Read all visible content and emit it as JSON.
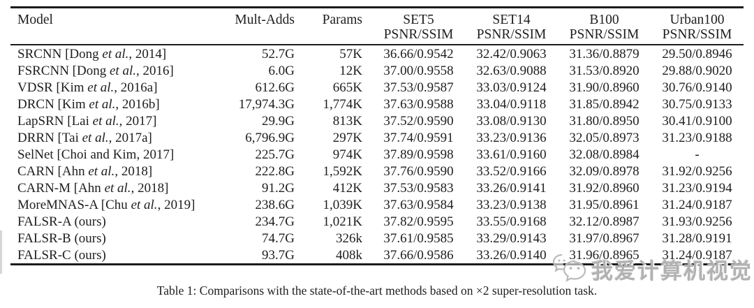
{
  "table": {
    "columns": [
      {
        "label": "Model",
        "sub": "",
        "align": "left"
      },
      {
        "label": "Mult-Adds",
        "sub": "",
        "align": "right"
      },
      {
        "label": "Params",
        "sub": "",
        "align": "right"
      },
      {
        "label": "SET5",
        "sub": "PSNR/SSIM",
        "align": "center"
      },
      {
        "label": "SET14",
        "sub": "PSNR/SSIM",
        "align": "center"
      },
      {
        "label": "B100",
        "sub": "PSNR/SSIM",
        "align": "center"
      },
      {
        "label": "Urban100",
        "sub": "PSNR/SSIM",
        "align": "center"
      }
    ],
    "rows": [
      [
        "SRCNN [Dong et al., 2014]",
        "52.7G",
        "57K",
        "36.66/0.9542",
        "32.42/0.9063",
        "31.36/0.8879",
        "29.50/0.8946"
      ],
      [
        "FSRCNN [Dong et al., 2016]",
        "6.0G",
        "12K",
        "37.00/0.9558",
        "32.63/0.9088",
        "31.53/0.8920",
        "29.88/0.9020"
      ],
      [
        "VDSR [Kim et al., 2016a]",
        "612.6G",
        "665K",
        "37.53/0.9587",
        "33.03/0.9124",
        "31.90/0.8960",
        "30.76/0.9140"
      ],
      [
        "DRCN [Kim et al., 2016b]",
        "17,974.3G",
        "1,774K",
        "37.63/0.9588",
        "33.04/0.9118",
        "31.85/0.8942",
        "30.75/0.9133"
      ],
      [
        "LapSRN [Lai et al., 2017]",
        "29.9G",
        "813K",
        "37.52/0.9590",
        "33.08/0.9130",
        "31.80/0.8950",
        "30.41/0.9100"
      ],
      [
        "DRRN [Tai et al., 2017a]",
        "6,796.9G",
        "297K",
        "37.74/0.9591",
        "33.23/0.9136",
        "32.05/0.8973",
        "31.23/0.9188"
      ],
      [
        "SelNet [Choi and Kim, 2017]",
        "225.7G",
        "974K",
        "37.89/0.9598",
        "33.61/0.9160",
        "32.08/0.8984",
        "-"
      ],
      [
        "CARN [Ahn et al., 2018]",
        "222.8G",
        "1,592K",
        "37.76/0.9590",
        "33.52/0.9166",
        "32.09/0.8978",
        "31.92/0.9256"
      ],
      [
        "CARN-M [Ahn et al., 2018]",
        "91.2G",
        "412K",
        "37.53/0.9583",
        "33.26/0.9141",
        "31.92/0.8960",
        "31.23/0.9194"
      ],
      [
        "MoreMNAS-A [Chu et al., 2019]",
        "238.6G",
        "1,039K",
        "37.63/0.9584",
        "33.23/0.9138",
        "31.95/0.8961",
        "31.24/0.9187"
      ],
      [
        "FALSR-A (ours)",
        "234.7G",
        "1,021K",
        "37.82/0.9595",
        "33.55/0.9168",
        "32.12/0.8987",
        "31.93/0.9256"
      ],
      [
        "FALSR-B (ours)",
        "74.7G",
        "326k",
        "37.61/0.9585",
        "33.29/0.9143",
        "31.97/0.8967",
        "31.28/0.9191"
      ],
      [
        "FALSR-C (ours)",
        "93.7G",
        "408k",
        "37.66/0.9586",
        "33.26/0.9140",
        "31.96/0.8965",
        "31.24/0.9187"
      ]
    ]
  },
  "caption": "Table 1: Comparisons with the state-of-the-art methods based on ×2 super-resolution task.",
  "watermark": {
    "text": "我爱计算机视觉",
    "icon": "wechat-icon"
  },
  "colors": {
    "text": "#1e1e1e",
    "rule": "#1c1c1c",
    "background": "#ffffff",
    "watermark": "#b4b1b1"
  }
}
